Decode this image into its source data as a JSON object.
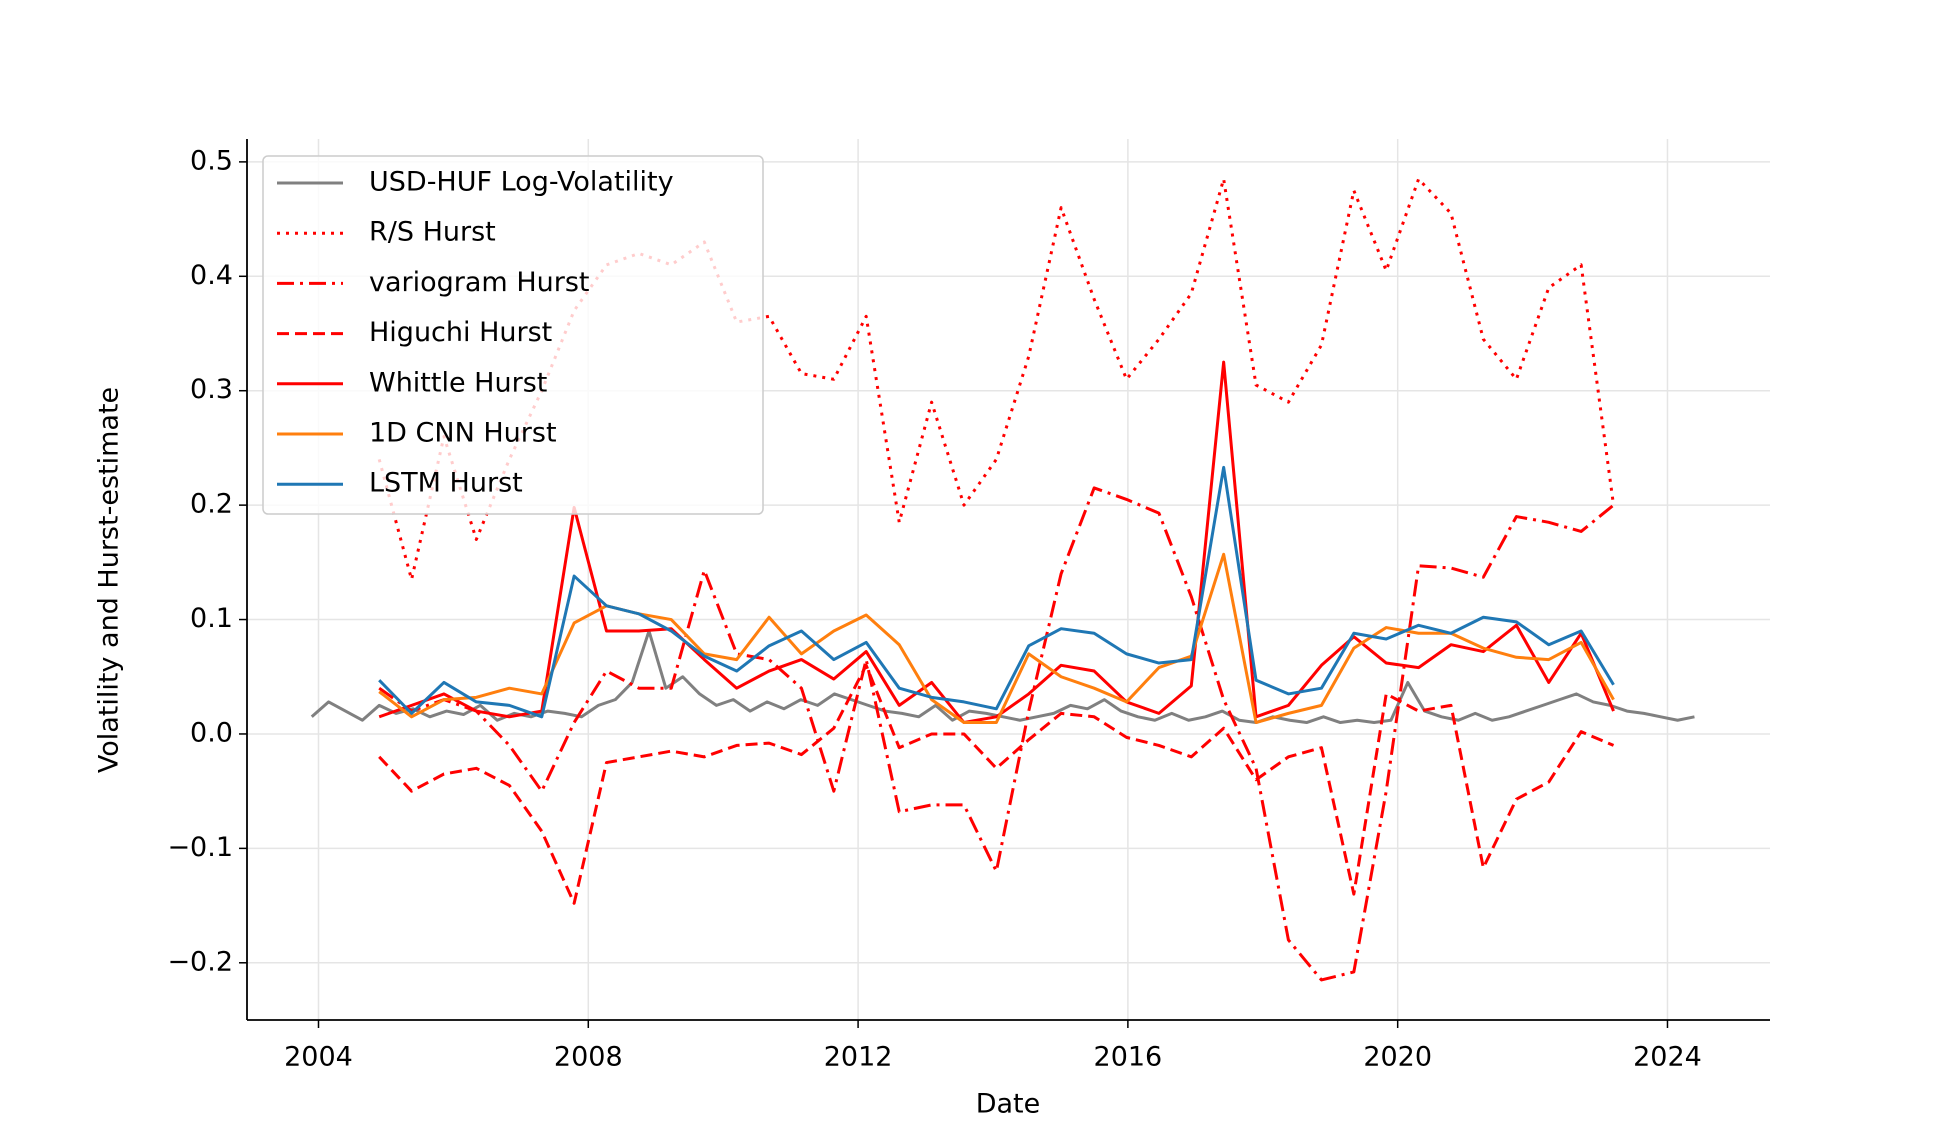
{
  "chart_data": {
    "type": "line",
    "x_label": "Date",
    "y_label": "Volatility and Hurst-estimate",
    "x": [
      2004.9,
      2005.38,
      2005.86,
      2006.34,
      2006.83,
      2007.31,
      2007.79,
      2008.27,
      2008.75,
      2009.23,
      2009.72,
      2010.2,
      2010.68,
      2011.16,
      2011.64,
      2012.12,
      2012.61,
      2013.09,
      2013.57,
      2014.05,
      2014.53,
      2015.01,
      2015.5,
      2015.98,
      2016.46,
      2016.94,
      2017.42,
      2017.9,
      2018.38,
      2018.87,
      2019.35,
      2019.83,
      2020.31,
      2020.79,
      2021.27,
      2021.76,
      2022.24,
      2022.72,
      2023.2
    ],
    "series": [
      {
        "name": "USD-HUF Log-Volatility",
        "color": "#808080",
        "linestyle": "solid",
        "x": [
          2003.9,
          2004.15,
          2004.4,
          2004.65,
          2004.9,
          2005.15,
          2005.4,
          2005.65,
          2005.9,
          2006.15,
          2006.4,
          2006.65,
          2006.9,
          2007.15,
          2007.4,
          2007.65,
          2007.9,
          2008.15,
          2008.4,
          2008.65,
          2008.9,
          2009.15,
          2009.4,
          2009.65,
          2009.9,
          2010.15,
          2010.4,
          2010.65,
          2010.9,
          2011.15,
          2011.4,
          2011.65,
          2011.9,
          2012.15,
          2012.4,
          2012.65,
          2012.9,
          2013.15,
          2013.4,
          2013.65,
          2013.9,
          2014.15,
          2014.4,
          2014.65,
          2014.9,
          2015.15,
          2015.4,
          2015.65,
          2015.9,
          2016.15,
          2016.4,
          2016.65,
          2016.9,
          2017.15,
          2017.4,
          2017.65,
          2017.9,
          2018.15,
          2018.4,
          2018.65,
          2018.9,
          2019.15,
          2019.4,
          2019.65,
          2019.9,
          2020.15,
          2020.4,
          2020.65,
          2020.9,
          2021.15,
          2021.4,
          2021.65,
          2021.9,
          2022.15,
          2022.4,
          2022.65,
          2022.9,
          2023.15,
          2023.4,
          2023.65,
          2023.9,
          2024.15,
          2024.4
        ],
        "values": [
          0.015,
          0.028,
          0.02,
          0.012,
          0.025,
          0.018,
          0.022,
          0.015,
          0.02,
          0.017,
          0.025,
          0.012,
          0.018,
          0.015,
          0.02,
          0.018,
          0.015,
          0.025,
          0.03,
          0.045,
          0.09,
          0.04,
          0.05,
          0.035,
          0.025,
          0.03,
          0.02,
          0.028,
          0.022,
          0.03,
          0.025,
          0.035,
          0.03,
          0.025,
          0.02,
          0.018,
          0.015,
          0.025,
          0.012,
          0.02,
          0.018,
          0.015,
          0.012,
          0.015,
          0.018,
          0.025,
          0.022,
          0.03,
          0.02,
          0.015,
          0.012,
          0.018,
          0.012,
          0.015,
          0.02,
          0.012,
          0.01,
          0.015,
          0.012,
          0.01,
          0.015,
          0.01,
          0.012,
          0.01,
          0.012,
          0.045,
          0.02,
          0.015,
          0.012,
          0.018,
          0.012,
          0.015,
          0.02,
          0.025,
          0.03,
          0.035,
          0.028,
          0.025,
          0.02,
          0.018,
          0.015,
          0.012,
          0.015
        ]
      },
      {
        "name": "R/S Hurst",
        "color": "#ff0000",
        "linestyle": "dotted",
        "values": [
          0.24,
          0.135,
          0.26,
          0.17,
          0.24,
          0.3,
          0.37,
          0.41,
          0.42,
          0.41,
          0.43,
          0.36,
          0.365,
          0.315,
          0.31,
          0.365,
          0.185,
          0.29,
          0.2,
          0.24,
          0.33,
          0.46,
          0.38,
          0.31,
          0.345,
          0.385,
          0.485,
          0.305,
          0.29,
          0.34,
          0.475,
          0.405,
          0.485,
          0.455,
          0.345,
          0.31,
          0.39,
          0.41,
          0.2
        ]
      },
      {
        "name": "variogram Hurst",
        "color": "#ff0000",
        "linestyle": "dashdot",
        "values": [
          0.04,
          0.02,
          0.03,
          0.02,
          -0.01,
          -0.05,
          0.01,
          0.055,
          0.04,
          0.04,
          0.143,
          0.07,
          0.065,
          0.04,
          -0.05,
          0.065,
          -0.068,
          -0.062,
          -0.062,
          -0.12,
          0.02,
          0.14,
          0.215,
          0.205,
          0.193,
          0.12,
          0.03,
          -0.03,
          -0.18,
          -0.215,
          -0.208,
          -0.05,
          0.147,
          0.145,
          0.137,
          0.19,
          0.185,
          0.177,
          0.2
        ]
      },
      {
        "name": "Higuchi Hurst",
        "color": "#ff0000",
        "linestyle": "dashed",
        "values": [
          -0.02,
          -0.05,
          -0.035,
          -0.03,
          -0.045,
          -0.085,
          -0.148,
          -0.025,
          -0.02,
          -0.015,
          -0.02,
          -0.01,
          -0.008,
          -0.018,
          0.005,
          0.06,
          -0.012,
          0.0,
          0.0,
          -0.03,
          -0.005,
          0.018,
          0.015,
          -0.003,
          -0.01,
          -0.02,
          0.005,
          -0.04,
          -0.02,
          -0.012,
          -0.14,
          0.035,
          0.02,
          0.025,
          -0.117,
          -0.057,
          -0.042,
          0.002,
          -0.01
        ]
      },
      {
        "name": "Whittle Hurst",
        "color": "#ff0000",
        "linestyle": "solid",
        "values": [
          0.015,
          0.025,
          0.035,
          0.02,
          0.015,
          0.02,
          0.198,
          0.09,
          0.09,
          0.092,
          0.065,
          0.04,
          0.055,
          0.065,
          0.048,
          0.072,
          0.025,
          0.045,
          0.01,
          0.015,
          0.035,
          0.06,
          0.055,
          0.028,
          0.018,
          0.042,
          0.325,
          0.015,
          0.025,
          0.06,
          0.085,
          0.062,
          0.058,
          0.078,
          0.072,
          0.095,
          0.045,
          0.088,
          0.02
        ]
      },
      {
        "name": "1D CNN Hurst",
        "color": "#ff7f0e",
        "linestyle": "solid",
        "values": [
          0.037,
          0.015,
          0.03,
          0.032,
          0.04,
          0.035,
          0.097,
          0.112,
          0.105,
          0.1,
          0.07,
          0.065,
          0.102,
          0.07,
          0.09,
          0.104,
          0.078,
          0.03,
          0.01,
          0.01,
          0.07,
          0.05,
          0.04,
          0.028,
          0.058,
          0.068,
          0.157,
          0.01,
          0.018,
          0.025,
          0.075,
          0.093,
          0.088,
          0.088,
          0.075,
          0.067,
          0.065,
          0.08,
          0.03
        ]
      },
      {
        "name": "LSTM Hurst",
        "color": "#1f77b4",
        "linestyle": "solid",
        "values": [
          0.047,
          0.018,
          0.045,
          0.028,
          0.025,
          0.015,
          0.138,
          0.112,
          0.105,
          0.09,
          0.068,
          0.055,
          0.077,
          0.09,
          0.065,
          0.08,
          0.04,
          0.032,
          0.028,
          0.022,
          0.077,
          0.092,
          0.088,
          0.07,
          0.062,
          0.065,
          0.233,
          0.047,
          0.035,
          0.04,
          0.088,
          0.083,
          0.095,
          0.088,
          0.102,
          0.098,
          0.078,
          0.09,
          0.043
        ]
      }
    ],
    "xlim": [
      2002.94,
      2025.52
    ],
    "ylim": [
      -0.25,
      0.52
    ],
    "xticks": [
      2004,
      2008,
      2012,
      2016,
      2020,
      2024
    ],
    "yticks": [
      {
        "value": -0.2,
        "label": "−0.2"
      },
      {
        "value": -0.1,
        "label": "−0.1"
      },
      {
        "value": 0,
        "label": "0.0"
      },
      0.1,
      0.2,
      0.3,
      0.4,
      0.5
    ],
    "grid": true,
    "legend": "upper left"
  }
}
